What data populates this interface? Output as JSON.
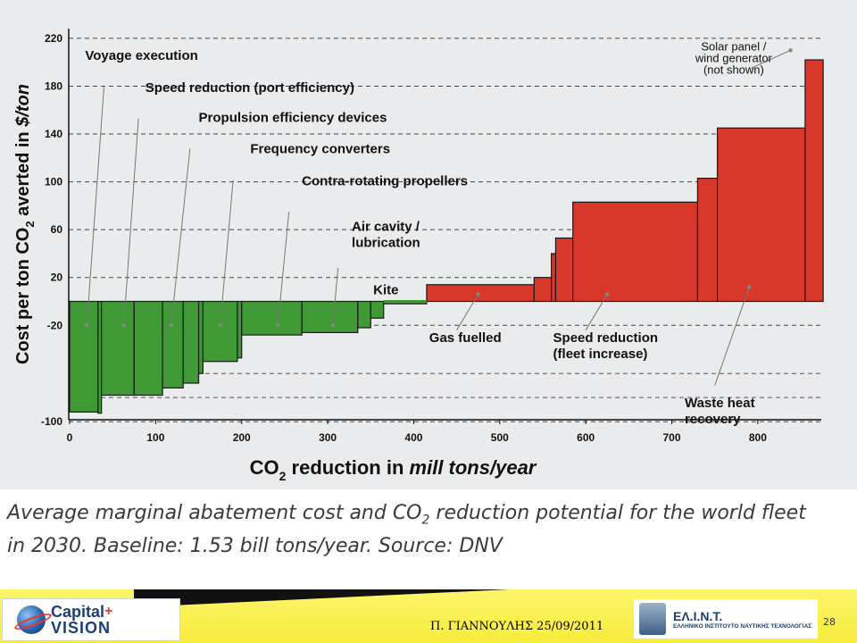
{
  "chart_data": {
    "type": "bar",
    "title": "",
    "xlabel_parts": {
      "prefix": "CO",
      "sub": "2",
      "suffix": " reduction in ",
      "unit": "mill tons/year"
    },
    "ylabel_parts": {
      "prefix": "Cost per ton CO",
      "sub": "2",
      "suffix": " averted in ",
      "unit": "$/ton"
    },
    "xlim": [
      0,
      880
    ],
    "ylim": [
      -100,
      220
    ],
    "x_ticks": [
      0,
      100,
      200,
      300,
      400,
      500,
      600,
      700,
      800
    ],
    "x_tick_labels": [
      "0",
      "100",
      "200",
      "300",
      "400",
      "500",
      "600",
      "700",
      "800"
    ],
    "y_ticks": [
      220,
      180,
      140,
      100,
      60,
      20,
      -20,
      -100
    ],
    "y_tick_labels": [
      "220",
      "180",
      "140",
      "100",
      "60",
      "20",
      "-20",
      "-100"
    ],
    "grid": "horizontal-dashed",
    "negative_color": "#3f9a35",
    "positive_color": "#d8382a",
    "bars": [
      {
        "x0": 0,
        "x1": 33,
        "value": -92
      },
      {
        "x0": 33,
        "x1": 37,
        "value": -93
      },
      {
        "x0": 37,
        "x1": 75,
        "value": -78
      },
      {
        "x0": 75,
        "x1": 108,
        "value": -78
      },
      {
        "x0": 108,
        "x1": 132,
        "value": -72
      },
      {
        "x0": 132,
        "x1": 150,
        "value": -68
      },
      {
        "x0": 150,
        "x1": 155,
        "value": -60
      },
      {
        "x0": 155,
        "x1": 195,
        "value": -50
      },
      {
        "x0": 195,
        "x1": 200,
        "value": -47
      },
      {
        "x0": 200,
        "x1": 270,
        "value": -28
      },
      {
        "x0": 270,
        "x1": 335,
        "value": -26
      },
      {
        "x0": 335,
        "x1": 350,
        "value": -22
      },
      {
        "x0": 350,
        "x1": 365,
        "value": -14
      },
      {
        "x0": 365,
        "x1": 415,
        "value": -2
      },
      {
        "x0": 415,
        "x1": 540,
        "value": 14
      },
      {
        "x0": 540,
        "x1": 560,
        "value": 20
      },
      {
        "x0": 560,
        "x1": 565,
        "value": 40
      },
      {
        "x0": 565,
        "x1": 585,
        "value": 53
      },
      {
        "x0": 585,
        "x1": 730,
        "value": 83
      },
      {
        "x0": 730,
        "x1": 753,
        "value": 103
      },
      {
        "x0": 753,
        "x1": 855,
        "value": 145
      },
      {
        "x0": 855,
        "x1": 876,
        "value": 202
      }
    ],
    "annotations": [
      {
        "lines": [
          "Voyage execution"
        ],
        "x": 18,
        "y": 202,
        "anchor": "start",
        "leader": [
          [
            40,
            180
          ],
          [
            20,
            -20
          ]
        ]
      },
      {
        "lines": [
          "Speed reduction (port efficiency)"
        ],
        "x": 88,
        "y": 175,
        "anchor": "start",
        "leader": [
          [
            80,
            153
          ],
          [
            63,
            -20
          ]
        ]
      },
      {
        "lines": [
          "Propulsion efficiency devices"
        ],
        "x": 150,
        "y": 150,
        "anchor": "start",
        "leader": [
          [
            140,
            128
          ],
          [
            118,
            -20
          ]
        ]
      },
      {
        "lines": [
          "Frequency converters"
        ],
        "x": 210,
        "y": 124,
        "anchor": "start",
        "leader": [
          [
            190,
            101
          ],
          [
            175,
            -20
          ]
        ]
      },
      {
        "lines": [
          "Contra-rotating propellers"
        ],
        "x": 270,
        "y": 97,
        "anchor": "start",
        "leader": [
          [
            255,
            75
          ],
          [
            242,
            -20
          ]
        ]
      },
      {
        "lines": [
          "Air cavity /",
          "lubrication"
        ],
        "x": 328,
        "y": 59,
        "anchor": "start",
        "leader": [
          [
            312,
            28
          ],
          [
            306,
            -20
          ]
        ]
      },
      {
        "lines": [
          "Kite"
        ],
        "x": 353,
        "y": 6,
        "anchor": "start",
        "leader": null
      },
      {
        "lines": [
          "Gas fuelled"
        ],
        "x": 418,
        "y": -34,
        "anchor": "start",
        "leader": [
          [
            450,
            -24
          ],
          [
            475,
            6
          ]
        ]
      },
      {
        "lines": [
          "Speed reduction",
          "(fleet increase)"
        ],
        "x": 562,
        "y": -34,
        "anchor": "start",
        "leader": [
          [
            600,
            -24
          ],
          [
            625,
            6
          ]
        ]
      },
      {
        "lines": [
          "Waste heat",
          "recovery"
        ],
        "x": 715,
        "y": -88,
        "anchor": "start",
        "leader": [
          [
            750,
            -70
          ],
          [
            790,
            12
          ]
        ]
      },
      {
        "lines": [
          "Solar panel /",
          "wind generator",
          "(not shown)"
        ],
        "x": 772,
        "y": 210,
        "anchor": "middle",
        "leader": [
          [
            792,
            195
          ],
          [
            838,
            210
          ]
        ],
        "light": true
      }
    ]
  },
  "caption": {
    "line1": "Average marginal abatement cost and CO",
    "line1_sub": "2",
    "line1_end": " reduction potential for the world fleet",
    "line2": "in 2030. Baseline: 1.53 bill tons/year.  Source: DNV"
  },
  "footer": {
    "left_logo_top": "Capital",
    "left_logo_plus": "+",
    "left_logo_bottom": "VISION",
    "author_date": "Π. ΓΙΑΝΝΟΥΛΗΣ   25/09/2011",
    "right_logo_name": "ΕΛ.Ι.Ν.Τ.",
    "right_logo_sub": "ΕΛΛΗΝΙΚΟ ΙΝΣΤΙΤΟΥΤΟ ΝΑΥΤΙΚΗΣ ΤΕΧΝΟΛΟΓΙΑΣ",
    "page_number": "28"
  }
}
